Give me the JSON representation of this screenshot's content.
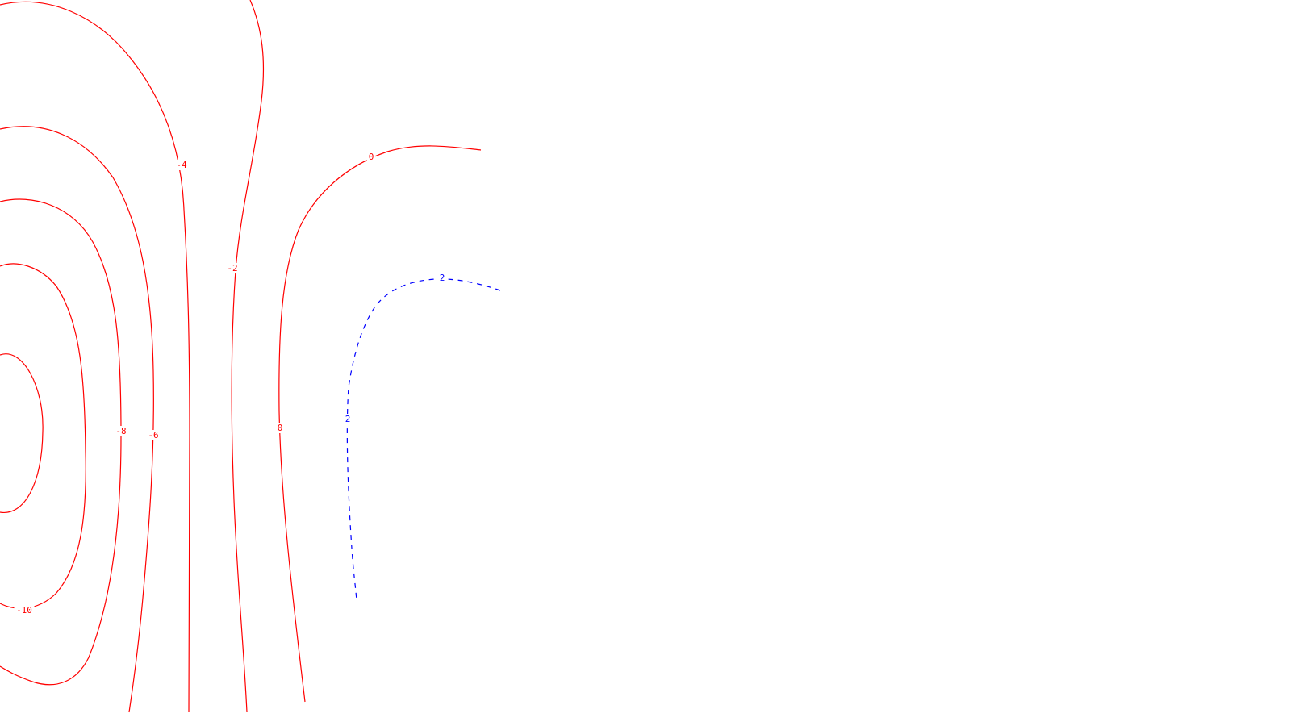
{
  "chart_data": {
    "type": "contour",
    "title": "",
    "xlabel": "",
    "ylabel": "",
    "grid": false,
    "legend": "none",
    "colors": {
      "negative": "#ff0000",
      "positive": "#0000ff",
      "background": "#ffffff"
    },
    "series": [
      {
        "level": -10,
        "label": "-10",
        "sign": "negative",
        "line_style": "solid"
      },
      {
        "level": -8,
        "label": "-8",
        "sign": "negative",
        "line_style": "solid"
      },
      {
        "level": -6,
        "label": "-6",
        "sign": "negative",
        "line_style": "solid"
      },
      {
        "level": -4,
        "label": "-4",
        "sign": "negative",
        "line_style": "solid"
      },
      {
        "level": -2,
        "label": "-2",
        "sign": "negative",
        "line_style": "solid"
      },
      {
        "level": 0,
        "label": "0",
        "sign": "negative",
        "line_style": "solid"
      },
      {
        "level": 2,
        "label": "2",
        "sign": "positive",
        "line_style": "dashed"
      }
    ]
  }
}
